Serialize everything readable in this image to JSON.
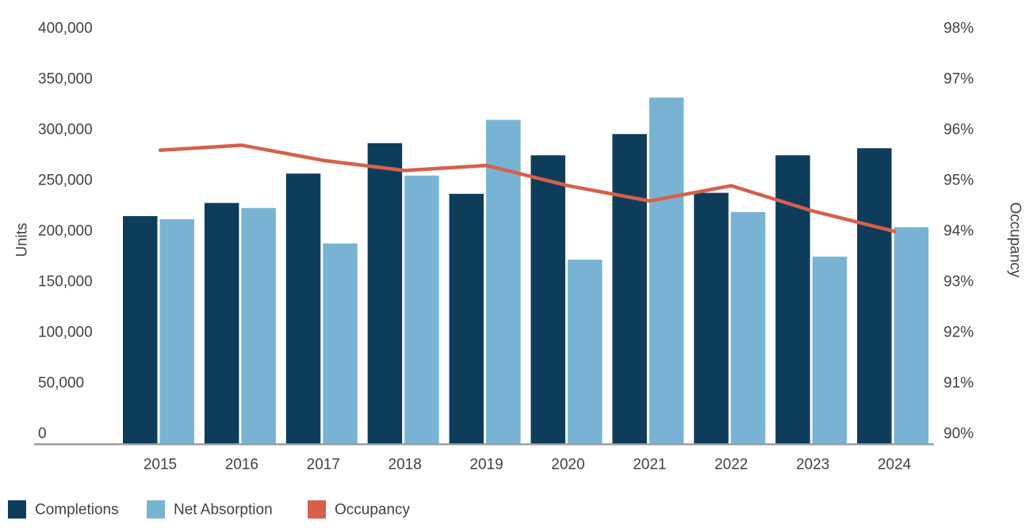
{
  "chart_data": {
    "type": "bar+line combo",
    "categories": [
      "2015",
      "2016",
      "2017",
      "2018",
      "2019",
      "2020",
      "2021",
      "2022",
      "2023",
      "2024"
    ],
    "series": [
      {
        "name": "Completions",
        "type": "bar",
        "axis": "left",
        "color": "#0E3D5B",
        "values": [
          225000,
          238000,
          267000,
          297000,
          247000,
          285000,
          306000,
          248000,
          285000,
          292000
        ]
      },
      {
        "name": "Net Absorption",
        "type": "bar",
        "axis": "left",
        "color": "#79B3D3",
        "values": [
          222000,
          233000,
          198000,
          265000,
          320000,
          182000,
          342000,
          229000,
          185000,
          214000
        ]
      },
      {
        "name": "Occupancy",
        "type": "line",
        "axis": "right",
        "color": "#D7604B",
        "values": [
          95.8,
          95.9,
          95.6,
          95.4,
          95.5,
          95.1,
          94.8,
          95.1,
          94.6,
          94.2
        ]
      }
    ],
    "left_axis": {
      "title": "Units",
      "min": 0,
      "max": 400000,
      "tick_step": 50000,
      "tick_labels": [
        "400,000",
        "350,000",
        "300,000",
        "250,000",
        "200,000",
        "150,000",
        "100,000",
        "50,000",
        "0"
      ]
    },
    "right_axis": {
      "title": "Occupancy",
      "min": 90,
      "max": 98,
      "tick_step": 1,
      "tick_labels": [
        "98%",
        "97%",
        "96%",
        "95%",
        "94%",
        "93%",
        "92%",
        "91%",
        "90%"
      ]
    },
    "grid": false,
    "legend_position": "bottom-left",
    "colors": {
      "axis_line": "#9C9C9C",
      "label_text": "#424242",
      "background": "#FFFFFF"
    }
  }
}
